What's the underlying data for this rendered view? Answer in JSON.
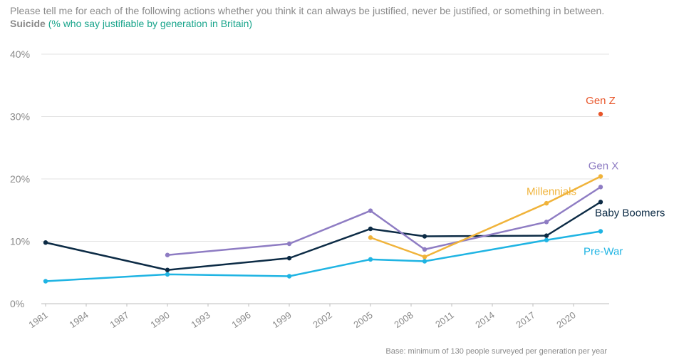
{
  "header": {
    "question": "Please tell me for each of the following actions whether you think it can always be justified, never be justified, or something in between.",
    "topic": "Suicide",
    "subtitle": "(% who say justifiable by generation in Britain)"
  },
  "footnote": "Base: minimum of 130 people surveyed per generation per year",
  "colors": {
    "gen_z": "#e8562a",
    "gen_x": "#8e7cc3",
    "millennials": "#f0b33a",
    "baby_boomers": "#0c2b45",
    "pre_war": "#1fb4e3",
    "grid": "#e3e3e3",
    "axis_text": "#8a8a8a"
  },
  "chart_data": {
    "type": "line",
    "title": "Please tell me for each of the following actions whether you think it can always be justified, never be justified, or something in between. Suicide (% who say justifiable by generation in Britain)",
    "xlabel": "",
    "ylabel": "",
    "xlim": [
      1981,
      2022
    ],
    "ylim": [
      0,
      40
    ],
    "x_ticks": [
      1981,
      1984,
      1987,
      1990,
      1993,
      1996,
      1999,
      2002,
      2005,
      2008,
      2011,
      2014,
      2017,
      2020
    ],
    "y_ticks": [
      0,
      10,
      20,
      30,
      40
    ],
    "y_tick_labels": [
      "0%",
      "10%",
      "20%",
      "30%",
      "40%"
    ],
    "grid": true,
    "legend": "direct labels at line ends",
    "series": [
      {
        "name": "Pre-War",
        "color_key": "pre_war",
        "x": [
          1981,
          1990,
          1999,
          2005,
          2009,
          2018,
          2022
        ],
        "y": [
          3.6,
          4.7,
          4.4,
          7.1,
          6.8,
          10.2,
          11.6
        ]
      },
      {
        "name": "Baby Boomers",
        "color_key": "baby_boomers",
        "x": [
          1981,
          1990,
          1999,
          2005,
          2009,
          2018,
          2022
        ],
        "y": [
          9.8,
          5.4,
          7.3,
          12.0,
          10.8,
          10.9,
          16.3
        ]
      },
      {
        "name": "Gen X",
        "color_key": "gen_x",
        "x": [
          1990,
          1999,
          2005,
          2009,
          2018,
          2022
        ],
        "y": [
          7.8,
          9.6,
          14.9,
          8.7,
          13.1,
          18.7
        ]
      },
      {
        "name": "Millennials",
        "color_key": "millennials",
        "x": [
          2005,
          2009,
          2018,
          2022
        ],
        "y": [
          10.6,
          7.5,
          16.1,
          20.4
        ]
      },
      {
        "name": "Gen Z",
        "color_key": "gen_z",
        "x": [
          2022
        ],
        "y": [
          30.4
        ]
      }
    ]
  }
}
